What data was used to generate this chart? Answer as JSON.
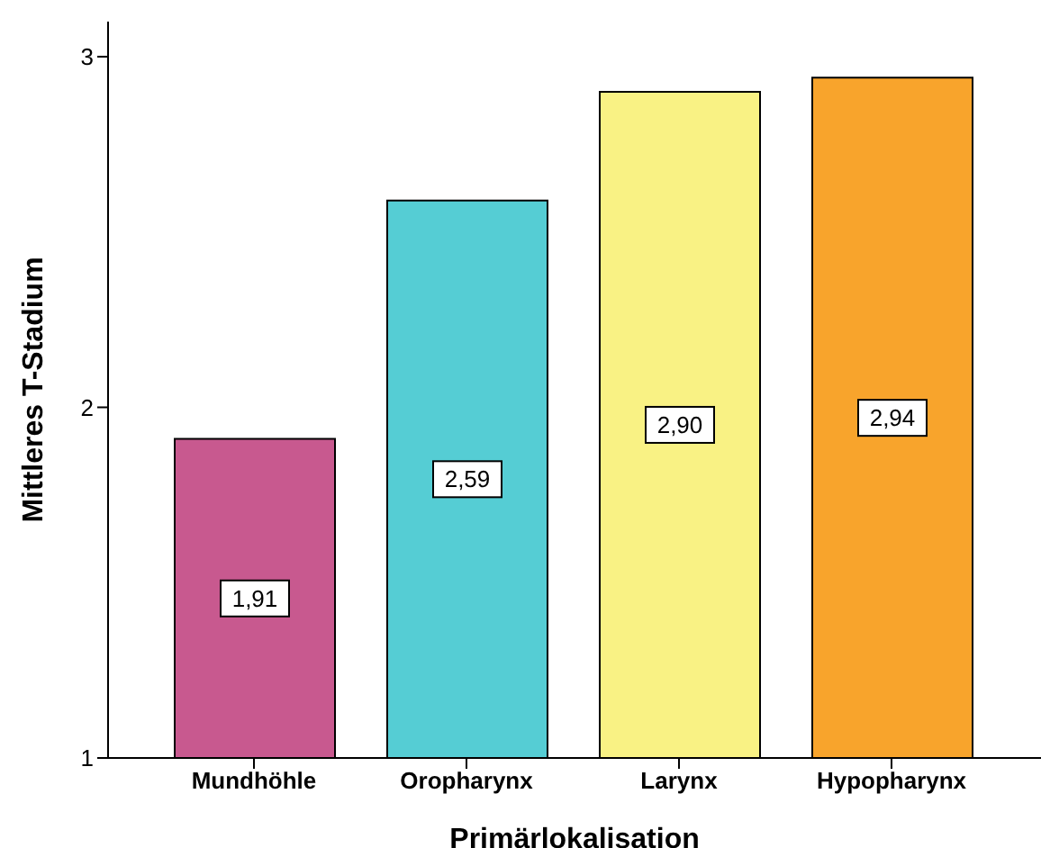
{
  "chart_data": {
    "type": "bar",
    "xlabel": "Primärlokalisation",
    "ylabel": "Mittleres T-Stadium",
    "categories": [
      "Mundhöhle",
      "Oropharynx",
      "Larynx",
      "Hypopharynx"
    ],
    "values": [
      1.91,
      2.59,
      2.9,
      2.94
    ],
    "colors": [
      "#c8598f",
      "#55cdd4",
      "#f9f284",
      "#f8a42c"
    ],
    "value_labels": [
      "1,91",
      "2,59",
      "2,90",
      "2,94"
    ],
    "ylim": [
      1,
      3.1
    ],
    "yticks": [
      1,
      2,
      3
    ],
    "grid": false,
    "legend": false
  }
}
